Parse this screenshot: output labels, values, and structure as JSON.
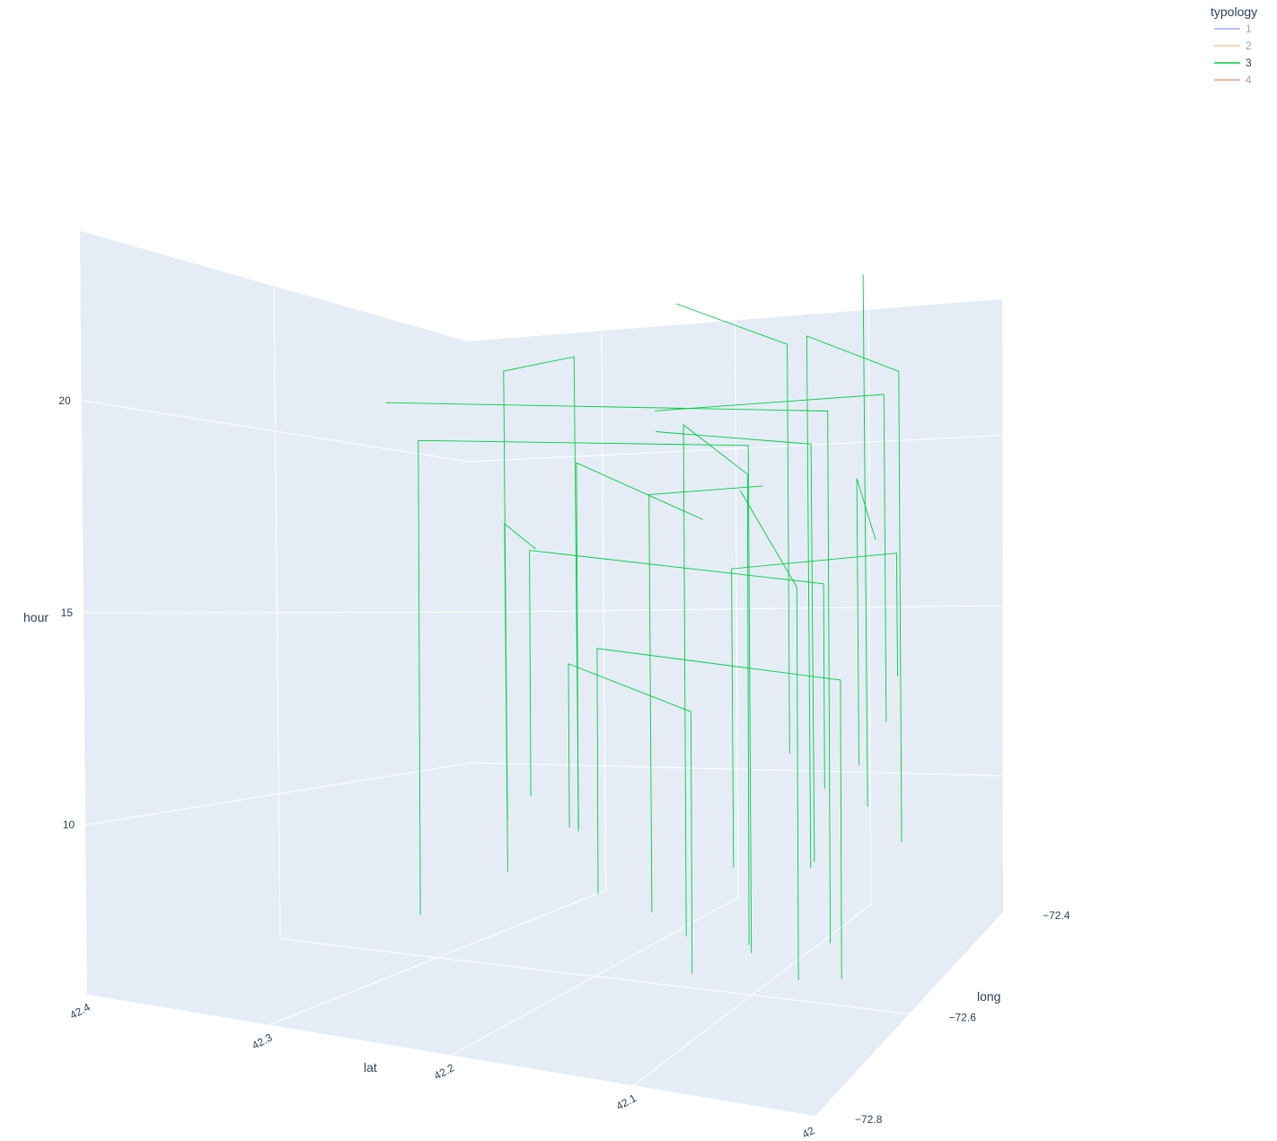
{
  "chart_data": {
    "type": "line",
    "mode": "3d",
    "axes": {
      "x": {
        "title": "lat",
        "range": [
          42,
          42.4
        ],
        "ticks": [
          "42",
          "42.1",
          "42.2",
          "42.3",
          "42.4"
        ]
      },
      "y": {
        "title": "long",
        "range": [
          -72.8,
          -72.4
        ],
        "ticks": [
          "−72.8",
          "−72.6",
          "−72.4"
        ]
      },
      "z": {
        "title": "hour",
        "range": [
          6,
          24
        ],
        "ticks": [
          "10",
          "15",
          "20"
        ]
      }
    },
    "legend": {
      "title": "typology",
      "placement": "top-right",
      "items": [
        {
          "label": "1",
          "color": "#636efa",
          "active": false
        },
        {
          "label": "2",
          "color": "#ffa15a",
          "active": false
        },
        {
          "label": "3",
          "color": "#00cc44",
          "active": true
        },
        {
          "label": "4",
          "color": "#ef553b",
          "active": false
        }
      ]
    },
    "series": [
      {
        "name": "3",
        "color": "#00cc44",
        "trips": [
          [
            [
              42.12,
              -72.55,
              6.4
            ],
            [
              42.12,
              -72.55,
              18.8
            ],
            [
              42.3,
              -72.62,
              18.8
            ],
            [
              42.3,
              -72.62,
              7.2
            ]
          ],
          [
            [
              42.05,
              -72.6,
              7.5
            ],
            [
              42.05,
              -72.6,
              20.5
            ],
            [
              42.28,
              -72.7,
              20.5
            ]
          ],
          [
            [
              42.1,
              -72.5,
              8.0
            ],
            [
              42.1,
              -72.5,
              21.0
            ],
            [
              42.02,
              -72.55,
              21.0
            ],
            [
              42.02,
              -72.55,
              9.5
            ]
          ],
          [
            [
              42.15,
              -72.58,
              7.0
            ],
            [
              42.15,
              -72.58,
              19.5
            ],
            [
              42.08,
              -72.66,
              19.5
            ],
            [
              42.08,
              -72.66,
              8.0
            ]
          ],
          [
            [
              42.2,
              -72.52,
              6.8
            ],
            [
              42.2,
              -72.52,
              17.0
            ],
            [
              42.14,
              -72.48,
              17.0
            ]
          ],
          [
            [
              42.08,
              -72.45,
              9.0
            ],
            [
              42.08,
              -72.45,
              22.0
            ]
          ],
          [
            [
              42.25,
              -72.58,
              10.0
            ],
            [
              42.25,
              -72.58,
              16.0
            ],
            [
              42.06,
              -72.58,
              16.0
            ],
            [
              42.06,
              -72.58,
              11.0
            ]
          ],
          [
            [
              42.18,
              -72.64,
              8.5
            ],
            [
              42.18,
              -72.64,
              14.5
            ],
            [
              42.03,
              -72.64,
              14.5
            ],
            [
              42.03,
              -72.64,
              7.2
            ]
          ],
          [
            [
              42.11,
              -72.47,
              7.8
            ],
            [
              42.11,
              -72.47,
              18.0
            ],
            [
              42.22,
              -72.47,
              18.0
            ]
          ],
          [
            [
              42.04,
              -72.52,
              12.0
            ],
            [
              42.04,
              -72.52,
              20.0
            ],
            [
              42.16,
              -72.6,
              20.0
            ]
          ],
          [
            [
              42.13,
              -72.62,
              6.6
            ],
            [
              42.13,
              -72.62,
              13.0
            ],
            [
              42.24,
              -72.55,
              13.0
            ],
            [
              42.24,
              -72.55,
              9.0
            ]
          ],
          [
            [
              42.07,
              -72.49,
              10.5
            ],
            [
              42.07,
              -72.49,
              17.5
            ],
            [
              42.02,
              -72.6,
              17.5
            ]
          ],
          [
            [
              42.32,
              -72.4,
              7.5
            ],
            [
              42.32,
              -72.4,
              19.0
            ],
            [
              42.34,
              -72.45,
              19.0
            ],
            [
              42.34,
              -72.45,
              8.0
            ]
          ],
          [
            [
              42.36,
              -72.42,
              6.5
            ],
            [
              42.36,
              -72.42,
              15.0
            ],
            [
              42.3,
              -72.48,
              15.0
            ]
          ],
          [
            [
              42.09,
              -72.56,
              11.5
            ],
            [
              42.09,
              -72.56,
              21.5
            ],
            [
              42.19,
              -72.5,
              21.5
            ]
          ],
          [
            [
              42.14,
              -72.53,
              8.2
            ],
            [
              42.14,
              -72.53,
              15.5
            ],
            [
              42.05,
              -72.47,
              15.5
            ],
            [
              42.05,
              -72.47,
              12.5
            ]
          ],
          [
            [
              42.21,
              -72.6,
              9.5
            ],
            [
              42.21,
              -72.6,
              18.5
            ],
            [
              42.1,
              -72.68,
              18.5
            ]
          ],
          [
            [
              42.06,
              -72.63,
              6.9
            ],
            [
              42.06,
              -72.63,
              16.5
            ],
            [
              42.17,
              -72.45,
              16.5
            ]
          ]
        ]
      }
    ]
  }
}
